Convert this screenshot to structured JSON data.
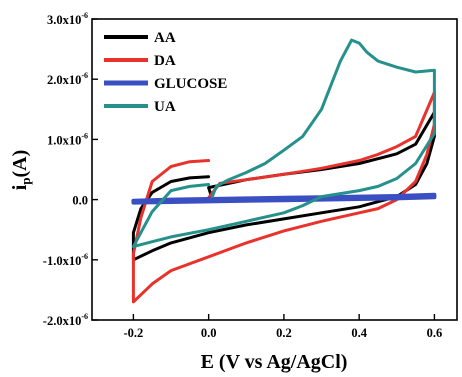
{
  "chart_data": {
    "type": "line",
    "title": "",
    "xlabel": "E (V vs Ag/AgCl)",
    "ylabel": "ip(A)",
    "xlim": [
      -0.31,
      0.66
    ],
    "ylim": [
      -2e-06,
      3e-06
    ],
    "x_ticks": [
      -0.2,
      0.0,
      0.2,
      0.4,
      0.6
    ],
    "x_tick_labels": [
      "-0.2",
      "0.0",
      "0.2",
      "0.4",
      "0.6"
    ],
    "y_ticks": [
      -2e-06,
      -1e-06,
      0.0,
      1e-06,
      2e-06,
      3e-06
    ],
    "y_tick_labels": [
      {
        "mantissa": "-2.0x10",
        "exp": "-6"
      },
      {
        "mantissa": "-1.0x10",
        "exp": "-6"
      },
      {
        "mantissa": "0.0",
        "exp": ""
      },
      {
        "mantissa": "1.0x10",
        "exp": "-6"
      },
      {
        "mantissa": "2.0x10",
        "exp": "-6"
      },
      {
        "mantissa": "3.0x10",
        "exp": "-6"
      }
    ],
    "grid": false,
    "legend_position": "top-left",
    "series": [
      {
        "name": "AA",
        "color": "#000000",
        "x": [
          0.0,
          -0.05,
          -0.1,
          -0.15,
          -0.18,
          -0.2,
          -0.2,
          -0.15,
          -0.1,
          0.0,
          0.1,
          0.2,
          0.3,
          0.4,
          0.5,
          0.55,
          0.58,
          0.6,
          0.6,
          0.55,
          0.5,
          0.45,
          0.4,
          0.3,
          0.2,
          0.1,
          0.0,
          0.01
        ],
        "y": [
          3.8e-07,
          3.6e-07,
          3e-07,
          1.2e-07,
          -1.5e-07,
          -5.5e-07,
          -1e-06,
          -8.5e-07,
          -7.2e-07,
          -5.5e-07,
          -4.2e-07,
          -3.2e-07,
          -2.2e-07,
          -1.2e-07,
          5e-08,
          2.5e-07,
          6e-07,
          1.05e-06,
          1.45e-06,
          9.2e-07,
          7.6e-07,
          6.8e-07,
          6e-07,
          5e-07,
          4.2e-07,
          3.3e-07,
          2e-07,
          0.0
        ]
      },
      {
        "name": "DA",
        "color": "#e8322b",
        "x": [
          0.0,
          -0.05,
          -0.1,
          -0.15,
          -0.18,
          -0.2,
          -0.2,
          -0.15,
          -0.1,
          0.0,
          0.1,
          0.2,
          0.3,
          0.4,
          0.45,
          0.5,
          0.55,
          0.58,
          0.6,
          0.6,
          0.55,
          0.5,
          0.45,
          0.4,
          0.3,
          0.2,
          0.1,
          0.03,
          0.0
        ],
        "y": [
          6.5e-07,
          6.3e-07,
          5.5e-07,
          3e-07,
          -3e-07,
          -9e-07,
          -1.7e-06,
          -1.4e-06,
          -1.18e-06,
          -9.5e-07,
          -7.2e-07,
          -5.2e-07,
          -3.6e-07,
          -2.2e-07,
          -1.5e-07,
          0.0,
          3e-07,
          7.5e-07,
          1.25e-06,
          1.78e-06,
          1.05e-06,
          8.8e-07,
          7.5e-07,
          6.5e-07,
          5.2e-07,
          4.2e-07,
          3.3e-07,
          2.7e-07,
          3e-08
        ]
      },
      {
        "name": "GLUCOSE",
        "color": "#3a4fc2",
        "x": [
          -0.2,
          -0.1,
          0.0,
          0.1,
          0.2,
          0.3,
          0.4,
          0.5,
          0.6,
          0.6,
          0.5,
          0.4,
          0.3,
          0.2,
          0.1,
          0.0,
          -0.1,
          -0.2
        ],
        "y": [
          -5e-08,
          -4e-08,
          -3e-08,
          -2e-08,
          -1e-08,
          0.0,
          1e-08,
          2e-08,
          4e-08,
          8e-08,
          6e-08,
          5e-08,
          4e-08,
          3e-08,
          2e-08,
          1e-08,
          0.0,
          -2e-08
        ]
      },
      {
        "name": "UA",
        "color": "#25908c",
        "x": [
          0.0,
          -0.05,
          -0.1,
          -0.15,
          -0.2,
          -0.15,
          -0.1,
          0.0,
          0.1,
          0.2,
          0.25,
          0.3,
          0.4,
          0.45,
          0.5,
          0.55,
          0.6,
          0.6,
          0.55,
          0.5,
          0.45,
          0.42,
          0.4,
          0.38,
          0.35,
          0.3,
          0.25,
          0.2,
          0.15,
          0.1,
          0.05,
          0.02,
          0.01
        ],
        "y": [
          2.5e-07,
          2.2e-07,
          1.5e-07,
          -2e-07,
          -7.8e-07,
          -7e-07,
          -6.2e-07,
          -5e-07,
          -3.6e-07,
          -2.2e-07,
          -1e-07,
          5e-08,
          1.5e-07,
          2.2e-07,
          3.5e-07,
          6e-07,
          1.1e-06,
          2.15e-06,
          2.12e-06,
          2.2e-06,
          2.3e-06,
          2.45e-06,
          2.6e-06,
          2.65e-06,
          2.3e-06,
          1.5e-06,
          1.05e-06,
          8.2e-07,
          6e-07,
          4.5e-07,
          3.2e-07,
          2.2e-07,
          5e-08
        ]
      }
    ]
  }
}
